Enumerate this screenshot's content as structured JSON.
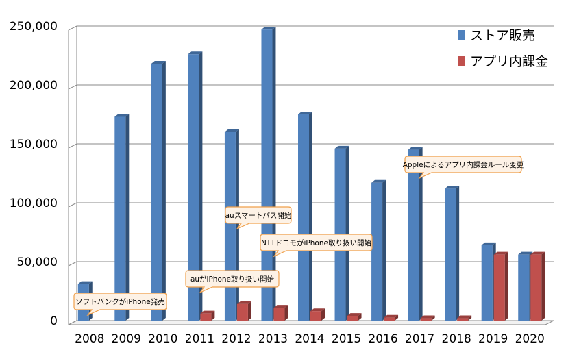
{
  "chart_data": {
    "type": "bar",
    "categories": [
      "2008",
      "2009",
      "2010",
      "2011",
      "2012",
      "2013",
      "2014",
      "2015",
      "2016",
      "2017",
      "2018",
      "2019",
      "2020"
    ],
    "series": [
      {
        "name": "ストア販売",
        "color": "#4F81BD",
        "values": [
          31000,
          173000,
          218000,
          226000,
          160000,
          247000,
          175000,
          146000,
          117000,
          145000,
          112000,
          64000,
          56000
        ]
      },
      {
        "name": "アプリ内課金",
        "color": "#C0504D",
        "values": [
          0,
          0,
          0,
          6000,
          14000,
          11000,
          8000,
          4000,
          2500,
          2000,
          2000,
          56000,
          56000
        ]
      }
    ],
    "ylim": [
      0,
      250000
    ],
    "yticks": [
      0,
      50000,
      100000,
      150000,
      200000,
      250000
    ],
    "ytick_labels": [
      "0",
      "50,000",
      "100,000",
      "150,000",
      "200,000",
      "250,000"
    ],
    "grid": true,
    "legend_position": "top-right",
    "annotations": [
      {
        "text": "ソフトバンクがiPhone発売",
        "category": "2008"
      },
      {
        "text": "auがiPhone取り扱い開始",
        "category": "2011"
      },
      {
        "text": "auスマートパス開始",
        "category": "2012"
      },
      {
        "text": "NTTドコモがiPhone取り扱い開始",
        "category": "2013"
      },
      {
        "text": "Appleによるアプリ内課金ルール変更",
        "category": "2017"
      }
    ]
  }
}
